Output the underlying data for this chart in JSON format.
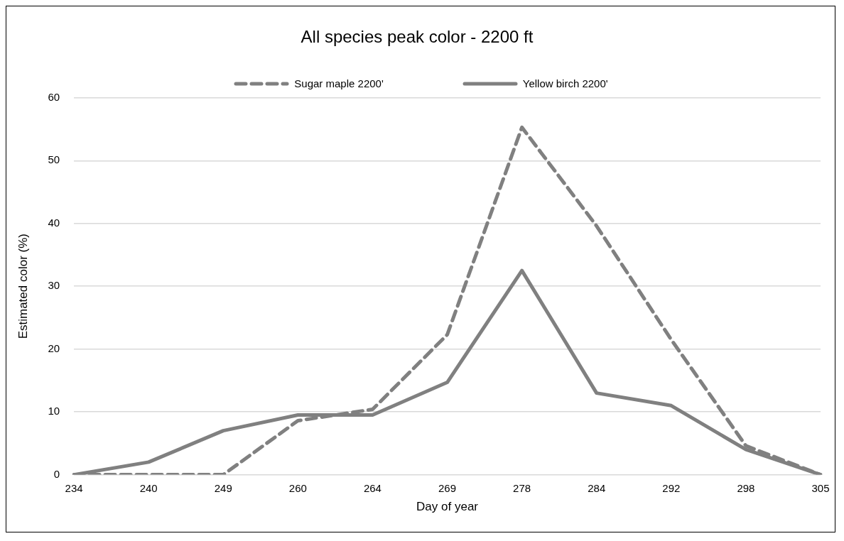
{
  "chart_data": {
    "type": "line",
    "title": "All species peak color - 2200 ft",
    "xlabel": "Day of year",
    "ylabel": "Estimated color (%)",
    "categories": [
      "234",
      "240",
      "249",
      "260",
      "264",
      "269",
      "278",
      "284",
      "292",
      "298",
      "305"
    ],
    "series": [
      {
        "name": "Sugar maple 2200'",
        "color": "#808080",
        "line_style": "dashed",
        "values": [
          0,
          0,
          0,
          8.6,
          10.4,
          22.3,
          55.3,
          39.6,
          21.5,
          4.6,
          0
        ]
      },
      {
        "name": "Yellow birch 2200'",
        "color": "#808080",
        "line_style": "solid",
        "values": [
          0,
          2,
          7,
          9.5,
          9.5,
          14.7,
          32.5,
          13,
          11,
          4,
          0
        ]
      }
    ],
    "ylim": [
      0,
      60
    ],
    "yticks": [
      0,
      10,
      20,
      30,
      40,
      50,
      60
    ],
    "grid": "y",
    "legend": "top",
    "marker": "none"
  }
}
